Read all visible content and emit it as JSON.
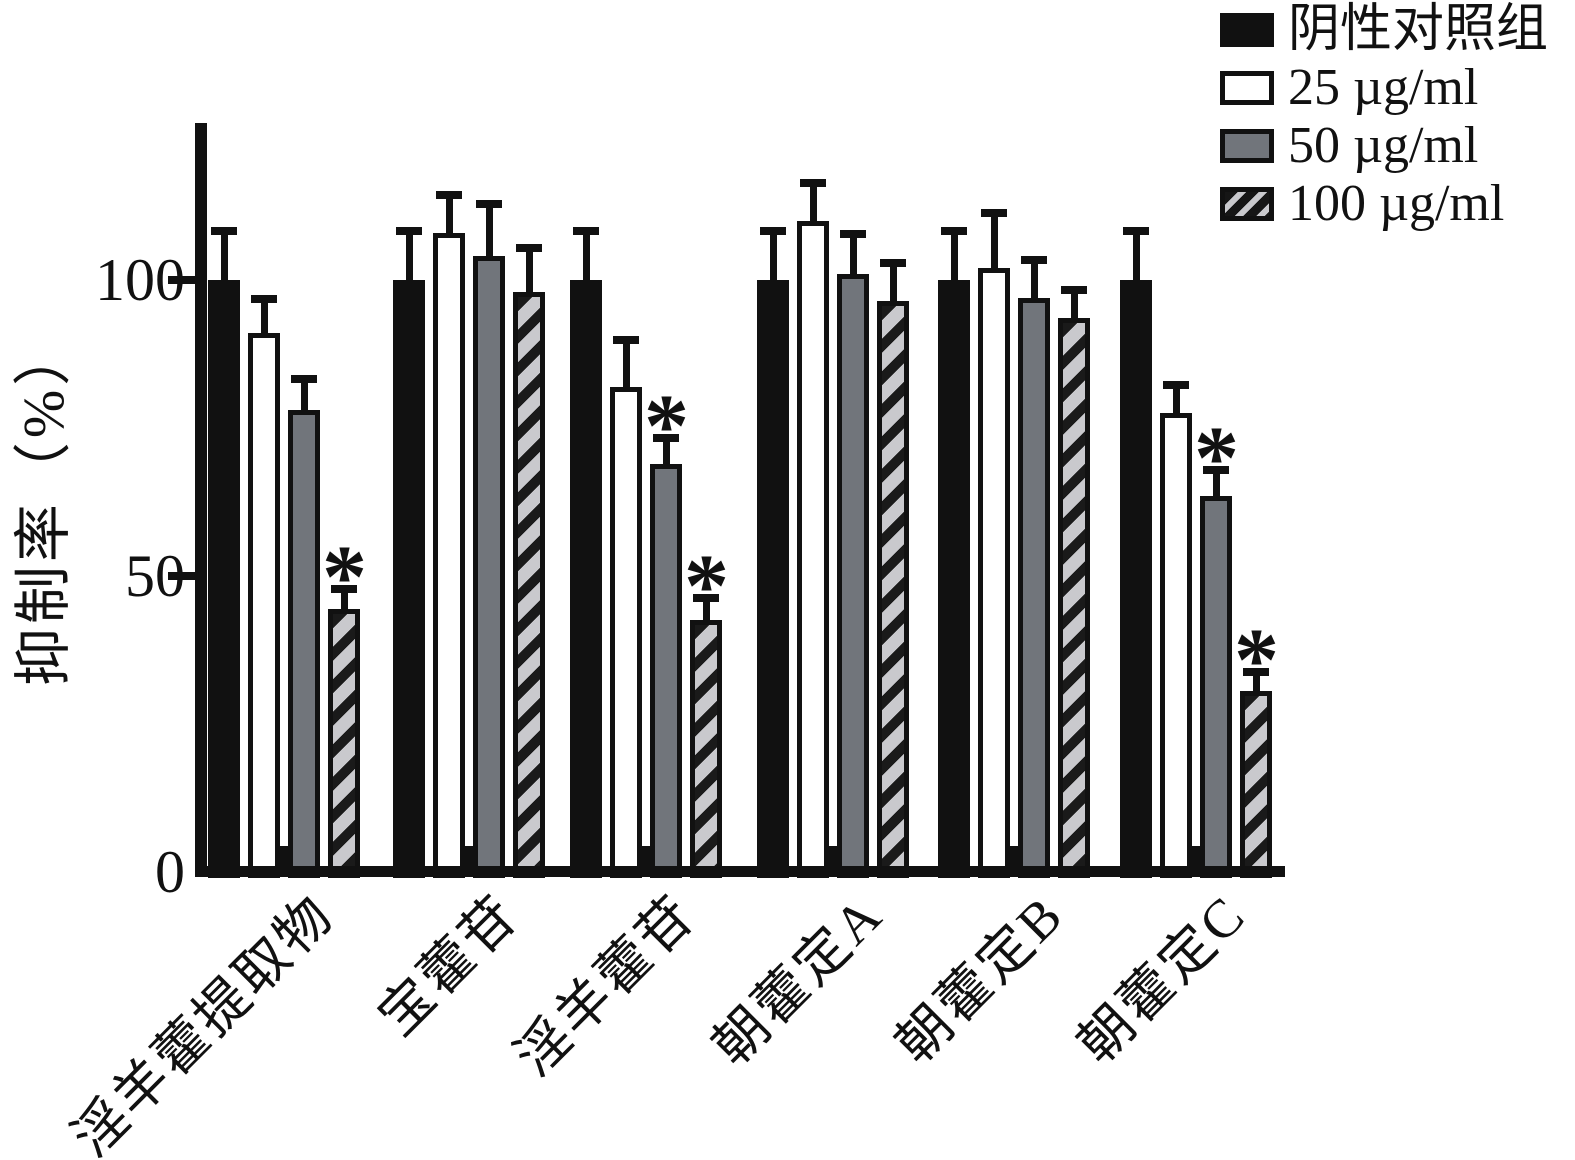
{
  "y_axis": {
    "title": "抑制率（%）",
    "tick_labels": [
      "0",
      "50",
      "100"
    ]
  },
  "legend": {
    "items": [
      {
        "label": "阴性对照组",
        "swatch": "black"
      },
      {
        "label": "25 µg/ml",
        "swatch": "white"
      },
      {
        "label": "50 µg/ml",
        "swatch": "gray"
      },
      {
        "label": "100 µg/ml",
        "swatch": "hatched"
      }
    ]
  },
  "colors": {
    "bar_black": "#111111",
    "bar_white": "#ffffff",
    "bar_gray": "#71757b",
    "hatch_light": "#c9c9cd",
    "text": "#111111"
  },
  "chart_data": {
    "type": "bar",
    "title": "",
    "xlabel": "",
    "ylabel": "抑制率（%）",
    "categories": [
      "淫羊藿提取物",
      "宝藿苷",
      "淫羊藿苷",
      "朝藿定A",
      "朝藿定B",
      "朝藿定C"
    ],
    "series": [
      {
        "name": "阴性对照组",
        "style": "black",
        "values": [
          100,
          100,
          100,
          100,
          100,
          100
        ],
        "errors": [
          8.5,
          8.5,
          8.5,
          8.5,
          8.5,
          8.5
        ],
        "significant": [
          false,
          false,
          false,
          false,
          false,
          false
        ]
      },
      {
        "name": "25 µg/ml",
        "style": "white",
        "values": [
          91,
          108,
          82,
          110,
          102,
          77.5
        ],
        "errors": [
          6,
          6.5,
          8,
          6.5,
          9.5,
          5
        ],
        "significant": [
          false,
          false,
          false,
          false,
          false,
          false
        ]
      },
      {
        "name": "50 µg/ml",
        "style": "gray",
        "values": [
          78,
          104,
          69,
          101,
          97,
          63.5
        ],
        "errors": [
          5.5,
          9,
          4.5,
          7,
          6.5,
          4.5
        ],
        "significant": [
          false,
          false,
          true,
          false,
          false,
          true
        ]
      },
      {
        "name": "100 µg/ml",
        "style": "hatched",
        "values": [
          44.5,
          98,
          42.5,
          96.5,
          93.5,
          30.5
        ],
        "errors": [
          3.5,
          7.5,
          4,
          6.5,
          5,
          3.5
        ],
        "significant": [
          true,
          false,
          true,
          false,
          false,
          true
        ]
      }
    ],
    "yticks": [
      0,
      50,
      100
    ],
    "ylim": [
      0,
      127
    ],
    "significance_marker": "*",
    "grid": false,
    "legend_position": "top-right"
  }
}
